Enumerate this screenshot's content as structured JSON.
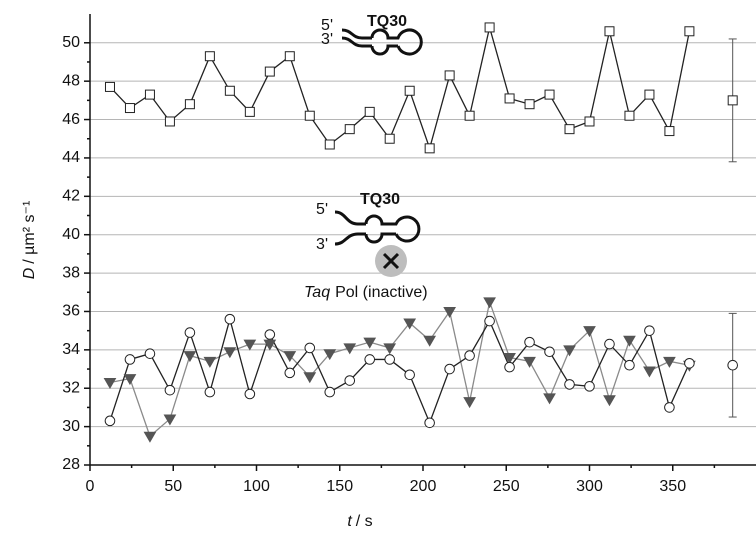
{
  "chart_data": {
    "type": "line",
    "x_label_symbol": "t",
    "x_label_unit": "/ s",
    "y_label_symbol": "D",
    "y_label_unit": "/ µm² s⁻¹",
    "x": [
      12,
      24,
      36,
      48,
      60,
      72,
      84,
      96,
      108,
      120,
      132,
      144,
      156,
      168,
      180,
      192,
      204,
      216,
      228,
      240,
      252,
      264,
      276,
      288,
      300,
      312,
      324,
      336,
      348,
      360
    ],
    "series": [
      {
        "marker": "square",
        "color": "#222222",
        "values": [
          47.7,
          46.6,
          47.3,
          45.9,
          46.8,
          49.3,
          47.5,
          46.4,
          48.5,
          49.3,
          46.2,
          44.7,
          45.5,
          46.4,
          45.0,
          47.5,
          44.5,
          48.3,
          46.2,
          50.8,
          47.1,
          46.8,
          47.3,
          45.5,
          45.9,
          50.6,
          46.2,
          47.3,
          45.4,
          50.6
        ]
      },
      {
        "marker": "triangle",
        "color": "#8a8a8a",
        "values": [
          32.3,
          32.5,
          29.5,
          30.4,
          33.7,
          33.4,
          33.9,
          34.3,
          34.3,
          33.7,
          32.6,
          33.8,
          34.1,
          34.4,
          34.1,
          35.4,
          34.5,
          36.0,
          31.3,
          36.5,
          33.6,
          33.4,
          31.5,
          34.0,
          35.0,
          31.4,
          34.5,
          32.9,
          33.4,
          33.2
        ]
      },
      {
        "marker": "circle",
        "color": "#222222",
        "values": [
          30.3,
          33.5,
          33.8,
          31.9,
          34.9,
          31.8,
          35.6,
          31.7,
          34.8,
          32.8,
          34.1,
          31.8,
          32.4,
          33.5,
          33.5,
          32.7,
          30.2,
          33.0,
          33.7,
          35.5,
          33.1,
          34.4,
          33.9,
          32.2,
          32.1,
          34.3,
          33.2,
          35.0,
          31.0,
          33.3
        ]
      }
    ],
    "error_bars": [
      {
        "marker": "square",
        "x": 386,
        "value": 47.0,
        "error": 3.2
      },
      {
        "marker": "circle",
        "x": 386,
        "value": 33.2,
        "error": 2.7
      }
    ],
    "annotations": {
      "top_label": "TQ30",
      "top_five": "5'",
      "top_three": "3'",
      "bottom_label": "TQ30",
      "bottom_five": "5'",
      "bottom_three": "3'",
      "protein_italic": "Taq",
      "protein_rest": "Pol (inactive)"
    },
    "xlim": [
      0,
      400
    ],
    "ylim": [
      28,
      51.5
    ],
    "xticks": [
      0,
      50,
      100,
      150,
      200,
      250,
      300,
      350
    ],
    "yticks": [
      28,
      30,
      32,
      34,
      36,
      38,
      40,
      42,
      44,
      46,
      48,
      50
    ],
    "grid": true
  }
}
